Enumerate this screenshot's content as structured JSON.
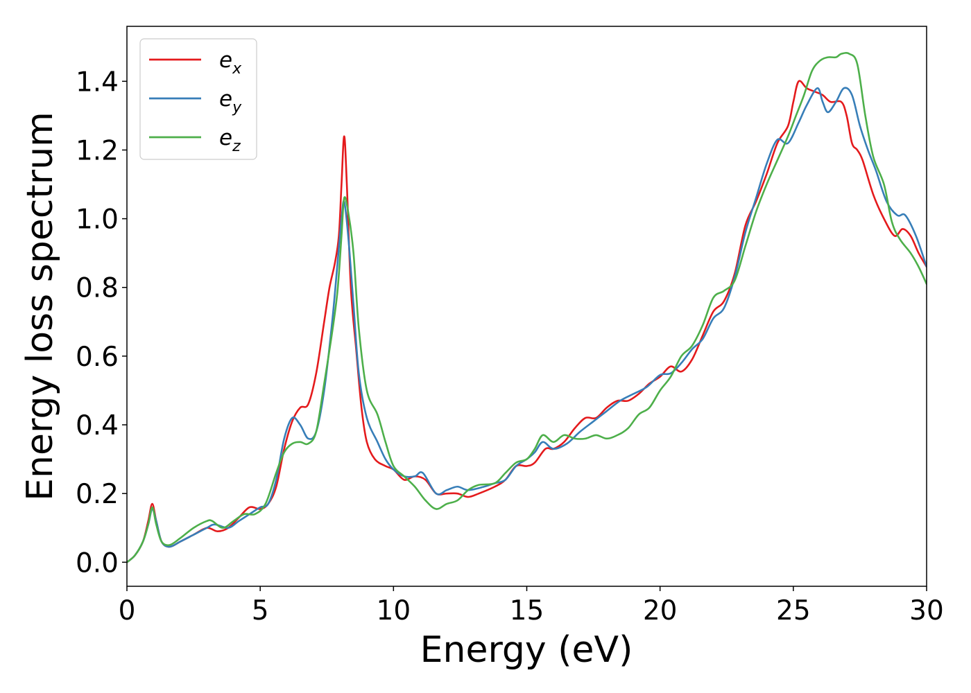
{
  "chart_data": {
    "type": "line",
    "title": "",
    "xlabel": "Energy (eV)",
    "ylabel": "Energy loss spectrum",
    "xlim": [
      0,
      30
    ],
    "ylim": [
      -0.07,
      1.56
    ],
    "xticks": [
      "0",
      "5",
      "10",
      "15",
      "20",
      "25",
      "30"
    ],
    "yticks": [
      "0.0",
      "0.2",
      "0.4",
      "0.6",
      "0.8",
      "1.0",
      "1.2",
      "1.4"
    ],
    "xtick_values": [
      0,
      5,
      10,
      15,
      20,
      25,
      30
    ],
    "ytick_values": [
      0.0,
      0.2,
      0.4,
      0.6,
      0.8,
      1.0,
      1.2,
      1.4
    ],
    "grid": false,
    "legend_position": "top-left",
    "series": [
      {
        "name": "e_x",
        "label_main": "e",
        "label_sub": "x",
        "color": "#e41a1c",
        "points": [
          [
            0,
            0.0
          ],
          [
            0.3,
            0.02
          ],
          [
            0.6,
            0.06
          ],
          [
            0.8,
            0.12
          ],
          [
            0.95,
            0.17
          ],
          [
            1.1,
            0.12
          ],
          [
            1.3,
            0.06
          ],
          [
            1.6,
            0.045
          ],
          [
            2.0,
            0.06
          ],
          [
            2.5,
            0.08
          ],
          [
            3.0,
            0.1
          ],
          [
            3.4,
            0.09
          ],
          [
            3.8,
            0.1
          ],
          [
            4.2,
            0.13
          ],
          [
            4.6,
            0.16
          ],
          [
            5.0,
            0.155
          ],
          [
            5.3,
            0.17
          ],
          [
            5.6,
            0.22
          ],
          [
            5.9,
            0.33
          ],
          [
            6.2,
            0.41
          ],
          [
            6.5,
            0.45
          ],
          [
            6.8,
            0.46
          ],
          [
            7.1,
            0.55
          ],
          [
            7.4,
            0.7
          ],
          [
            7.6,
            0.8
          ],
          [
            7.8,
            0.87
          ],
          [
            7.95,
            0.95
          ],
          [
            8.05,
            1.1
          ],
          [
            8.15,
            1.24
          ],
          [
            8.25,
            1.1
          ],
          [
            8.4,
            0.8
          ],
          [
            8.6,
            0.62
          ],
          [
            8.8,
            0.45
          ],
          [
            9.0,
            0.35
          ],
          [
            9.3,
            0.3
          ],
          [
            9.7,
            0.28
          ],
          [
            10.0,
            0.27
          ],
          [
            10.4,
            0.24
          ],
          [
            10.8,
            0.25
          ],
          [
            11.2,
            0.24
          ],
          [
            11.6,
            0.2
          ],
          [
            12.0,
            0.2
          ],
          [
            12.4,
            0.2
          ],
          [
            12.8,
            0.19
          ],
          [
            13.2,
            0.2
          ],
          [
            13.8,
            0.22
          ],
          [
            14.2,
            0.24
          ],
          [
            14.6,
            0.28
          ],
          [
            15.0,
            0.28
          ],
          [
            15.3,
            0.29
          ],
          [
            15.7,
            0.33
          ],
          [
            16.0,
            0.33
          ],
          [
            16.4,
            0.35
          ],
          [
            16.8,
            0.39
          ],
          [
            17.2,
            0.42
          ],
          [
            17.6,
            0.42
          ],
          [
            18.0,
            0.45
          ],
          [
            18.4,
            0.47
          ],
          [
            18.8,
            0.47
          ],
          [
            19.2,
            0.49
          ],
          [
            19.6,
            0.52
          ],
          [
            20.0,
            0.54
          ],
          [
            20.4,
            0.57
          ],
          [
            20.8,
            0.555
          ],
          [
            21.2,
            0.59
          ],
          [
            21.6,
            0.66
          ],
          [
            22.0,
            0.73
          ],
          [
            22.4,
            0.76
          ],
          [
            22.8,
            0.84
          ],
          [
            23.2,
            0.98
          ],
          [
            23.6,
            1.05
          ],
          [
            24.0,
            1.13
          ],
          [
            24.4,
            1.22
          ],
          [
            24.8,
            1.27
          ],
          [
            25.0,
            1.34
          ],
          [
            25.2,
            1.4
          ],
          [
            25.5,
            1.38
          ],
          [
            25.8,
            1.37
          ],
          [
            26.1,
            1.36
          ],
          [
            26.4,
            1.34
          ],
          [
            26.8,
            1.34
          ],
          [
            27.0,
            1.3
          ],
          [
            27.2,
            1.22
          ],
          [
            27.4,
            1.2
          ],
          [
            27.6,
            1.17
          ],
          [
            28.0,
            1.07
          ],
          [
            28.4,
            1.0
          ],
          [
            28.8,
            0.95
          ],
          [
            29.1,
            0.97
          ],
          [
            29.4,
            0.95
          ],
          [
            29.7,
            0.9
          ],
          [
            30.0,
            0.86
          ]
        ]
      },
      {
        "name": "e_y",
        "label_main": "e",
        "label_sub": "y",
        "color": "#377eb8",
        "points": [
          [
            0,
            0.0
          ],
          [
            0.3,
            0.02
          ],
          [
            0.6,
            0.06
          ],
          [
            0.8,
            0.11
          ],
          [
            0.95,
            0.155
          ],
          [
            1.1,
            0.12
          ],
          [
            1.3,
            0.06
          ],
          [
            1.6,
            0.045
          ],
          [
            2.0,
            0.06
          ],
          [
            2.5,
            0.08
          ],
          [
            3.0,
            0.1
          ],
          [
            3.3,
            0.11
          ],
          [
            3.8,
            0.1
          ],
          [
            4.2,
            0.12
          ],
          [
            4.6,
            0.14
          ],
          [
            5.0,
            0.16
          ],
          [
            5.3,
            0.17
          ],
          [
            5.6,
            0.24
          ],
          [
            5.9,
            0.36
          ],
          [
            6.2,
            0.42
          ],
          [
            6.5,
            0.4
          ],
          [
            6.8,
            0.36
          ],
          [
            7.1,
            0.38
          ],
          [
            7.4,
            0.5
          ],
          [
            7.7,
            0.7
          ],
          [
            7.9,
            0.87
          ],
          [
            8.05,
            1.0
          ],
          [
            8.15,
            1.05
          ],
          [
            8.3,
            0.95
          ],
          [
            8.5,
            0.75
          ],
          [
            8.7,
            0.55
          ],
          [
            9.0,
            0.42
          ],
          [
            9.4,
            0.35
          ],
          [
            9.7,
            0.3
          ],
          [
            10.0,
            0.27
          ],
          [
            10.4,
            0.25
          ],
          [
            10.8,
            0.25
          ],
          [
            11.1,
            0.26
          ],
          [
            11.6,
            0.2
          ],
          [
            12.0,
            0.21
          ],
          [
            12.4,
            0.22
          ],
          [
            12.8,
            0.21
          ],
          [
            13.4,
            0.22
          ],
          [
            13.8,
            0.23
          ],
          [
            14.2,
            0.24
          ],
          [
            14.6,
            0.28
          ],
          [
            15.0,
            0.3
          ],
          [
            15.3,
            0.32
          ],
          [
            15.6,
            0.35
          ],
          [
            16.0,
            0.33
          ],
          [
            16.5,
            0.345
          ],
          [
            17.0,
            0.38
          ],
          [
            17.5,
            0.41
          ],
          [
            18.0,
            0.44
          ],
          [
            18.5,
            0.47
          ],
          [
            19.0,
            0.49
          ],
          [
            19.5,
            0.51
          ],
          [
            20.0,
            0.545
          ],
          [
            20.4,
            0.55
          ],
          [
            20.8,
            0.58
          ],
          [
            21.2,
            0.62
          ],
          [
            21.6,
            0.65
          ],
          [
            22.0,
            0.71
          ],
          [
            22.4,
            0.74
          ],
          [
            22.8,
            0.83
          ],
          [
            23.2,
            0.96
          ],
          [
            23.6,
            1.06
          ],
          [
            24.0,
            1.16
          ],
          [
            24.4,
            1.23
          ],
          [
            24.8,
            1.22
          ],
          [
            25.2,
            1.28
          ],
          [
            25.5,
            1.33
          ],
          [
            25.9,
            1.38
          ],
          [
            26.1,
            1.34
          ],
          [
            26.3,
            1.31
          ],
          [
            26.6,
            1.34
          ],
          [
            26.9,
            1.38
          ],
          [
            27.2,
            1.36
          ],
          [
            27.5,
            1.27
          ],
          [
            27.8,
            1.2
          ],
          [
            28.1,
            1.14
          ],
          [
            28.5,
            1.05
          ],
          [
            28.9,
            1.01
          ],
          [
            29.2,
            1.01
          ],
          [
            29.6,
            0.95
          ],
          [
            30.0,
            0.86
          ]
        ]
      },
      {
        "name": "e_z",
        "label_main": "e",
        "label_sub": "z",
        "color": "#4daf4a",
        "points": [
          [
            0,
            0.0
          ],
          [
            0.3,
            0.02
          ],
          [
            0.6,
            0.06
          ],
          [
            0.8,
            0.11
          ],
          [
            0.95,
            0.16
          ],
          [
            1.1,
            0.11
          ],
          [
            1.3,
            0.06
          ],
          [
            1.6,
            0.05
          ],
          [
            2.0,
            0.07
          ],
          [
            2.5,
            0.1
          ],
          [
            3.0,
            0.12
          ],
          [
            3.2,
            0.12
          ],
          [
            3.6,
            0.1
          ],
          [
            4.0,
            0.12
          ],
          [
            4.4,
            0.14
          ],
          [
            4.8,
            0.14
          ],
          [
            5.2,
            0.17
          ],
          [
            5.6,
            0.26
          ],
          [
            5.9,
            0.32
          ],
          [
            6.2,
            0.345
          ],
          [
            6.5,
            0.35
          ],
          [
            6.8,
            0.345
          ],
          [
            7.1,
            0.38
          ],
          [
            7.4,
            0.52
          ],
          [
            7.7,
            0.67
          ],
          [
            7.9,
            0.79
          ],
          [
            8.05,
            0.95
          ],
          [
            8.15,
            1.06
          ],
          [
            8.3,
            1.02
          ],
          [
            8.5,
            0.9
          ],
          [
            8.7,
            0.68
          ],
          [
            9.0,
            0.5
          ],
          [
            9.4,
            0.43
          ],
          [
            9.7,
            0.35
          ],
          [
            10.0,
            0.28
          ],
          [
            10.4,
            0.25
          ],
          [
            10.8,
            0.22
          ],
          [
            11.2,
            0.18
          ],
          [
            11.6,
            0.155
          ],
          [
            12.0,
            0.17
          ],
          [
            12.4,
            0.18
          ],
          [
            12.8,
            0.21
          ],
          [
            13.2,
            0.225
          ],
          [
            13.8,
            0.23
          ],
          [
            14.2,
            0.26
          ],
          [
            14.6,
            0.29
          ],
          [
            15.0,
            0.3
          ],
          [
            15.3,
            0.33
          ],
          [
            15.6,
            0.37
          ],
          [
            16.0,
            0.35
          ],
          [
            16.4,
            0.37
          ],
          [
            16.8,
            0.36
          ],
          [
            17.2,
            0.36
          ],
          [
            17.6,
            0.37
          ],
          [
            18.0,
            0.36
          ],
          [
            18.4,
            0.37
          ],
          [
            18.8,
            0.39
          ],
          [
            19.2,
            0.43
          ],
          [
            19.6,
            0.45
          ],
          [
            20.0,
            0.5
          ],
          [
            20.4,
            0.54
          ],
          [
            20.8,
            0.6
          ],
          [
            21.2,
            0.63
          ],
          [
            21.6,
            0.69
          ],
          [
            22.0,
            0.77
          ],
          [
            22.4,
            0.79
          ],
          [
            22.8,
            0.82
          ],
          [
            23.2,
            0.92
          ],
          [
            23.6,
            1.02
          ],
          [
            24.0,
            1.1
          ],
          [
            24.4,
            1.17
          ],
          [
            24.8,
            1.24
          ],
          [
            25.1,
            1.3
          ],
          [
            25.4,
            1.36
          ],
          [
            25.7,
            1.43
          ],
          [
            26.0,
            1.46
          ],
          [
            26.3,
            1.47
          ],
          [
            26.6,
            1.47
          ],
          [
            26.8,
            1.48
          ],
          [
            27.1,
            1.48
          ],
          [
            27.4,
            1.45
          ],
          [
            27.7,
            1.3
          ],
          [
            28.0,
            1.18
          ],
          [
            28.4,
            1.1
          ],
          [
            28.7,
            0.99
          ],
          [
            29.0,
            0.94
          ],
          [
            29.4,
            0.9
          ],
          [
            29.7,
            0.86
          ],
          [
            30.0,
            0.81
          ]
        ]
      }
    ]
  }
}
